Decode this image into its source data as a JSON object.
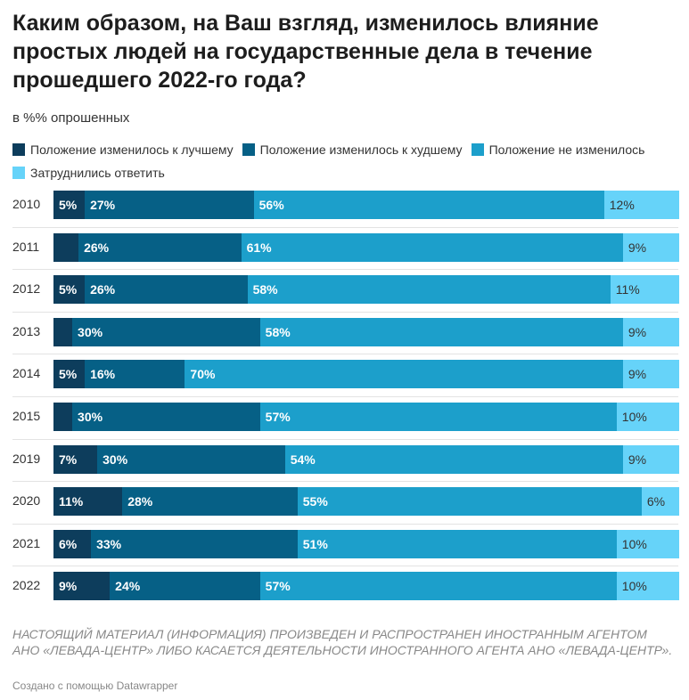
{
  "title": "Каким образом, на Ваш взгляд, изменилось влияние простых людей на государственные дела в течение прошедшего 2022-го года?",
  "subtitle": "в %% опрошенных",
  "note": "НАСТОЯЩИЙ МАТЕРИАЛ (ИНФОРМАЦИЯ) ПРОИЗВЕДЕН И РАСПРОСТРАНЕН ИНОСТРАННЫМ АГЕНТОМ АНО «ЛЕВАДА-ЦЕНТР» ЛИБО КАСАЕТСЯ ДЕЯТЕЛЬНОСТИ ИНОСТРАННОГО АГЕНТА АНО «ЛЕВАДА-ЦЕНТР».",
  "credit": "Создано с помощью Datawrapper",
  "chart_data": {
    "type": "bar",
    "orientation": "horizontal",
    "stacked": true,
    "title": "Каким образом, на Ваш взгляд, изменилось влияние простых людей на государственные дела в течение прошедшего 2022-го года?",
    "subtitle": "в %% опрошенных",
    "xlim": [
      0,
      100
    ],
    "legend_position": "top",
    "categories": [
      "2010",
      "2011",
      "2012",
      "2013",
      "2014",
      "2015",
      "2019",
      "2020",
      "2021",
      "2022"
    ],
    "series": [
      {
        "name": "Положение изменилось к лучшему",
        "color": "#0d3d5c",
        "values": [
          5,
          4,
          5,
          3,
          5,
          3,
          7,
          11,
          6,
          9
        ],
        "labels": [
          "5%",
          "",
          "5%",
          "",
          "5%",
          "",
          "7%",
          "11%",
          "6%",
          "9%"
        ]
      },
      {
        "name": "Положение изменилось к худшему",
        "color": "#066086",
        "values": [
          27,
          26,
          26,
          30,
          16,
          30,
          30,
          28,
          33,
          24
        ],
        "labels": [
          "27%",
          "26%",
          "26%",
          "30%",
          "16%",
          "30%",
          "30%",
          "28%",
          "33%",
          "24%"
        ]
      },
      {
        "name": "Положение не изменилось",
        "color": "#1c9fcb",
        "values": [
          56,
          61,
          58,
          58,
          70,
          57,
          54,
          55,
          51,
          57
        ],
        "labels": [
          "56%",
          "61%",
          "58%",
          "58%",
          "70%",
          "57%",
          "54%",
          "55%",
          "51%",
          "57%"
        ]
      },
      {
        "name": "Затруднились ответить",
        "color": "#66d3f9",
        "values": [
          12,
          9,
          11,
          9,
          9,
          10,
          9,
          6,
          10,
          10
        ],
        "labels": [
          "12%",
          "9%",
          "11%",
          "9%",
          "9%",
          "10%",
          "9%",
          "6%",
          "10%",
          "10%"
        ]
      }
    ]
  }
}
